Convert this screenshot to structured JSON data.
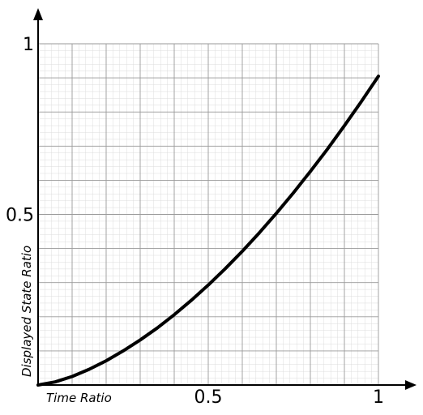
{
  "chart_data": {
    "type": "line",
    "title": "",
    "xlabel": "Time Ratio",
    "ylabel": "Displayed State Ratio",
    "xlim": [
      0,
      1
    ],
    "ylim": [
      0,
      1
    ],
    "grid": true,
    "x_ticks": [
      {
        "value": 0.5,
        "label": "0.5"
      },
      {
        "value": 1,
        "label": "1"
      }
    ],
    "y_ticks": [
      {
        "value": 0.5,
        "label": "0.5"
      },
      {
        "value": 1,
        "label": "1"
      }
    ],
    "series": [
      {
        "x": [
          0,
          0.05,
          0.1,
          0.15,
          0.2,
          0.25,
          0.3,
          0.35,
          0.4,
          0.45,
          0.5,
          0.55,
          0.6,
          0.65,
          0.7,
          0.75,
          0.8,
          0.85,
          0.9,
          0.95,
          1
        ],
        "y": [
          0,
          0.009,
          0.025,
          0.046,
          0.071,
          0.1,
          0.132,
          0.167,
          0.206,
          0.248,
          0.293,
          0.341,
          0.392,
          0.446,
          0.503,
          0.563,
          0.626,
          0.691,
          0.76,
          0.831,
          0.905
        ]
      }
    ],
    "colors": {
      "curve": "#000000",
      "axis": "#000000",
      "grid_major": "#9a9a9a",
      "grid_minor": "#dcdcdc"
    }
  }
}
